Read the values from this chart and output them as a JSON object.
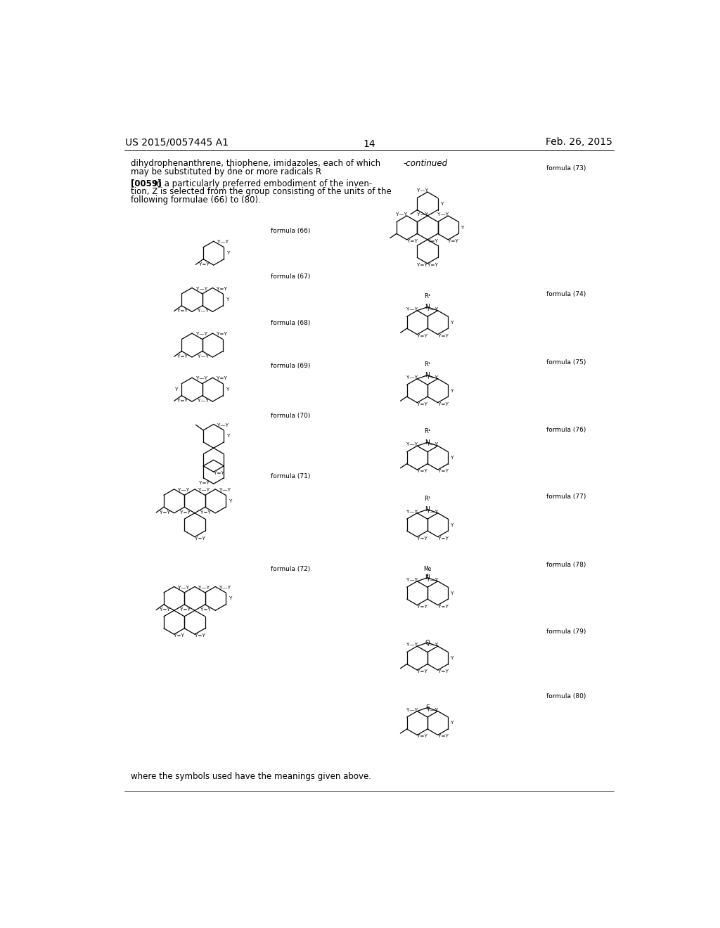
{
  "page_width": 10.24,
  "page_height": 13.2,
  "bg_color": "#ffffff",
  "header_left": "US 2015/0057445 A1",
  "header_right": "Feb. 26, 2015",
  "page_number": "14",
  "text_color": "#000000",
  "bottom_text": "where the symbols used have the meanings given above."
}
